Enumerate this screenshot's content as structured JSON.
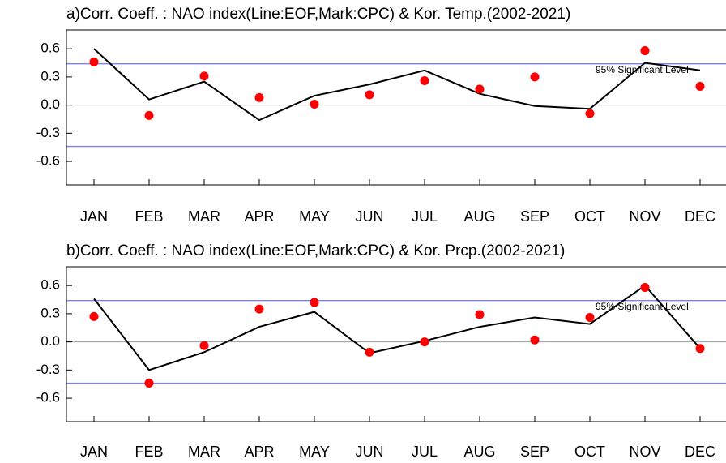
{
  "chart_data": [
    {
      "type": "line",
      "title": "a)Corr. Coeff. : NAO index(Line:EOF,Mark:CPC) & Kor. Temp.(2002-2021)",
      "categories": [
        "JAN",
        "FEB",
        "MAR",
        "APR",
        "MAY",
        "JUN",
        "JUL",
        "AUG",
        "SEP",
        "OCT",
        "NOV",
        "DEC"
      ],
      "series": [
        {
          "name": "EOF",
          "style": "line",
          "color": "#000000",
          "values": [
            0.6,
            0.06,
            0.25,
            -0.16,
            0.1,
            0.22,
            0.37,
            0.12,
            -0.01,
            -0.04,
            0.45,
            0.37
          ]
        },
        {
          "name": "CPC",
          "style": "marker",
          "color": "#ff0000",
          "values": [
            0.46,
            -0.11,
            0.31,
            0.08,
            0.01,
            0.11,
            0.26,
            0.17,
            0.3,
            -0.09,
            0.58,
            0.2
          ]
        }
      ],
      "ylim": [
        -0.85,
        0.8
      ],
      "yticks": [
        {
          "value": -0.6,
          "label": "-0.6"
        },
        -0.3,
        {
          "value": 0,
          "label": "0.0"
        },
        0.3,
        0.6
      ],
      "hlines": [
        0.44,
        -0.44
      ],
      "hline_color": "#8080e8",
      "annotation": "95% Significant Level",
      "zero_line": true
    },
    {
      "type": "line",
      "title": "b)Corr. Coeff. : NAO index(Line:EOF,Mark:CPC) & Kor. Prcp.(2002-2021)",
      "categories": [
        "JAN",
        "FEB",
        "MAR",
        "APR",
        "MAY",
        "JUN",
        "JUL",
        "AUG",
        "SEP",
        "OCT",
        "NOV",
        "DEC"
      ],
      "series": [
        {
          "name": "EOF",
          "style": "line",
          "color": "#000000",
          "values": [
            0.46,
            -0.3,
            -0.11,
            0.16,
            0.32,
            -0.12,
            0.01,
            0.16,
            0.26,
            0.19,
            0.6,
            -0.07
          ]
        },
        {
          "name": "CPC",
          "style": "marker",
          "color": "#ff0000",
          "values": [
            0.27,
            -0.44,
            -0.04,
            0.35,
            0.42,
            -0.11,
            0.0,
            0.29,
            0.02,
            0.26,
            0.58,
            -0.07
          ]
        }
      ],
      "ylim": [
        -0.85,
        0.8
      ],
      "yticks": [
        {
          "value": -0.6,
          "label": "-0.6"
        },
        -0.3,
        {
          "value": 0,
          "label": "0.0"
        },
        0.3,
        0.6
      ],
      "hlines": [
        0.44,
        -0.44
      ],
      "hline_color": "#8080e8",
      "annotation": "95% Significant Level",
      "zero_line": true
    }
  ]
}
